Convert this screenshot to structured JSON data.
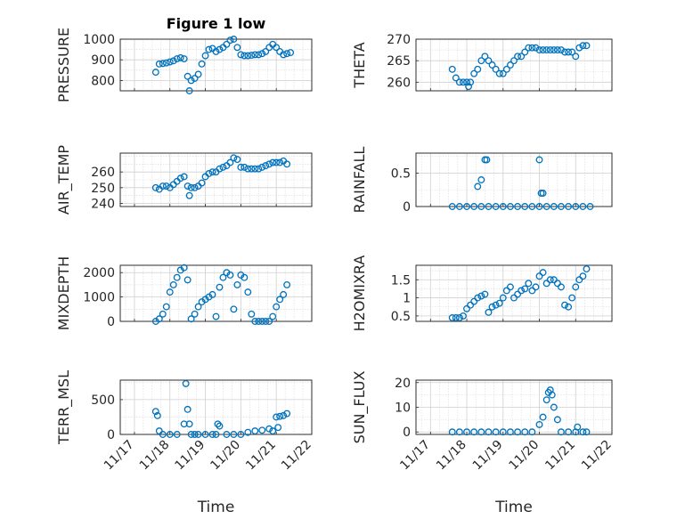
{
  "window": {
    "width": 778,
    "height": 583
  },
  "colors": {
    "marker": "#0072bd",
    "axis": "#262626",
    "grid": "#d8d8d8"
  },
  "chart_data": [
    {
      "id": "pressure",
      "type": "scatter",
      "title": "Figure 1 low",
      "ylabel": "PRESSURE",
      "xlabel": "",
      "ylim": [
        750,
        1000
      ],
      "yticks": [
        800,
        900,
        1000
      ],
      "xticks": [],
      "grid": true,
      "x_days": [
        0.6,
        0.7,
        0.8,
        0.9,
        1.0,
        1.1,
        1.2,
        1.3,
        1.4,
        1.5,
        1.55,
        1.6,
        1.7,
        1.8,
        1.9,
        2.0,
        2.1,
        2.2,
        2.3,
        2.4,
        2.5,
        2.6,
        2.7,
        2.8,
        2.9,
        3.0,
        3.1,
        3.2,
        3.3,
        3.4,
        3.5,
        3.6,
        3.7,
        3.8,
        3.9,
        4.0,
        4.1,
        4.2,
        4.3,
        4.4
      ],
      "values": [
        840,
        880,
        882,
        885,
        890,
        895,
        905,
        910,
        905,
        820,
        750,
        800,
        810,
        830,
        880,
        920,
        950,
        955,
        940,
        950,
        960,
        975,
        995,
        1000,
        960,
        925,
        920,
        920,
        922,
        925,
        925,
        930,
        940,
        960,
        975,
        960,
        940,
        925,
        930,
        935
      ]
    },
    {
      "id": "theta",
      "type": "scatter",
      "ylabel": "THETA",
      "xlabel": "",
      "ylim": [
        258,
        270
      ],
      "yticks": [
        260,
        265,
        270
      ],
      "xticks": [],
      "grid": true,
      "x_days": [
        0.6,
        0.7,
        0.8,
        0.9,
        1.0,
        1.05,
        1.1,
        1.2,
        1.3,
        1.4,
        1.5,
        1.6,
        1.7,
        1.8,
        1.9,
        2.0,
        2.1,
        2.2,
        2.3,
        2.4,
        2.5,
        2.6,
        2.7,
        2.8,
        2.9,
        3.0,
        3.1,
        3.2,
        3.3,
        3.4,
        3.5,
        3.6,
        3.7,
        3.8,
        3.9,
        4.0,
        4.1,
        4.2,
        4.3
      ],
      "values": [
        263,
        261,
        260,
        260,
        260,
        259,
        260,
        262,
        263,
        265,
        266,
        265,
        264,
        263,
        262,
        262,
        263,
        264,
        265,
        266,
        266,
        267,
        268,
        268,
        268,
        267.5,
        267.5,
        267.5,
        267.5,
        267.5,
        267.5,
        267.5,
        267,
        267,
        267,
        266,
        268,
        268.5,
        268.5
      ]
    },
    {
      "id": "air_temp",
      "type": "scatter",
      "ylabel": "AIR_TEMP",
      "xlabel": "",
      "ylim": [
        238,
        272
      ],
      "yticks": [
        240,
        250,
        260
      ],
      "xticks": [],
      "grid": true,
      "x_days": [
        0.6,
        0.7,
        0.8,
        0.9,
        1.0,
        1.1,
        1.2,
        1.3,
        1.4,
        1.5,
        1.55,
        1.6,
        1.7,
        1.8,
        1.9,
        2.0,
        2.1,
        2.2,
        2.3,
        2.4,
        2.5,
        2.6,
        2.7,
        2.8,
        2.9,
        3.0,
        3.1,
        3.2,
        3.3,
        3.4,
        3.5,
        3.6,
        3.7,
        3.8,
        3.9,
        4.0,
        4.1,
        4.2,
        4.3
      ],
      "values": [
        250,
        249,
        251,
        251,
        250,
        252,
        254,
        256,
        257,
        251,
        245,
        250,
        250,
        251,
        253,
        257,
        259,
        260,
        260,
        262,
        263,
        264,
        266,
        269,
        268,
        263,
        263,
        262,
        262,
        262,
        262,
        263,
        264,
        265,
        266,
        266,
        266,
        267,
        265
      ]
    },
    {
      "id": "rainfall",
      "type": "scatter",
      "ylabel": "RAINFALL",
      "xlabel": "",
      "ylim": [
        0,
        0.8
      ],
      "yticks": [
        0,
        0.5
      ],
      "xticks": [],
      "grid": true,
      "x_days": [
        0.6,
        0.8,
        1.0,
        1.2,
        1.4,
        1.6,
        1.8,
        2.0,
        2.2,
        2.4,
        2.6,
        2.8,
        3.0,
        3.2,
        3.4,
        3.6,
        3.8,
        4.0,
        4.2,
        4.4,
        1.3,
        1.4,
        1.5,
        1.55,
        3.0,
        3.05,
        3.1
      ],
      "values": [
        0,
        0,
        0,
        0,
        0,
        0,
        0,
        0,
        0,
        0,
        0,
        0,
        0,
        0,
        0,
        0,
        0,
        0,
        0,
        0,
        0.3,
        0.4,
        0.7,
        0.7,
        0.7,
        0.2,
        0.2
      ]
    },
    {
      "id": "mixdepth",
      "type": "scatter",
      "ylabel": "MIXDEPTH",
      "xlabel": "",
      "ylim": [
        0,
        2300
      ],
      "yticks": [
        0,
        1000,
        2000
      ],
      "xticks": [],
      "grid": true,
      "x_days": [
        0.6,
        0.7,
        0.8,
        0.9,
        1.0,
        1.1,
        1.2,
        1.3,
        1.4,
        1.5,
        1.6,
        1.7,
        1.8,
        1.9,
        2.0,
        2.1,
        2.2,
        2.3,
        2.4,
        2.5,
        2.6,
        2.7,
        2.8,
        2.9,
        3.0,
        3.1,
        3.2,
        3.3,
        3.4,
        3.5,
        3.6,
        3.7,
        3.8,
        3.9,
        4.0,
        4.1,
        4.2,
        4.3
      ],
      "values": [
        0,
        100,
        300,
        600,
        1200,
        1500,
        1800,
        2100,
        2200,
        1700,
        100,
        300,
        600,
        800,
        900,
        1000,
        1100,
        200,
        1400,
        1800,
        2000,
        1900,
        500,
        1500,
        1900,
        1800,
        1200,
        300,
        0,
        0,
        0,
        0,
        0,
        200,
        600,
        900,
        1100,
        1500
      ]
    },
    {
      "id": "h2omixra",
      "type": "scatter",
      "ylabel": "H2OMIXRA",
      "xlabel": "",
      "ylim": [
        0.35,
        1.9
      ],
      "yticks": [
        0.5,
        1,
        1.5
      ],
      "xticks": [],
      "grid": true,
      "x_days": [
        0.6,
        0.7,
        0.8,
        0.9,
        1.0,
        1.1,
        1.2,
        1.3,
        1.4,
        1.5,
        1.6,
        1.7,
        1.8,
        1.9,
        2.0,
        2.1,
        2.2,
        2.3,
        2.4,
        2.5,
        2.6,
        2.7,
        2.8,
        2.9,
        3.0,
        3.1,
        3.2,
        3.3,
        3.4,
        3.5,
        3.6,
        3.7,
        3.8,
        3.9,
        4.0,
        4.1,
        4.2,
        4.3
      ],
      "values": [
        0.45,
        0.45,
        0.45,
        0.5,
        0.7,
        0.8,
        0.9,
        1.0,
        1.05,
        1.1,
        0.6,
        0.75,
        0.8,
        0.85,
        1.0,
        1.2,
        1.3,
        1.0,
        1.1,
        1.2,
        1.25,
        1.4,
        1.2,
        1.3,
        1.6,
        1.7,
        1.4,
        1.5,
        1.5,
        1.4,
        1.3,
        0.8,
        0.75,
        1.0,
        1.3,
        1.5,
        1.6,
        1.8
      ]
    },
    {
      "id": "terr_msl",
      "type": "scatter",
      "ylabel": "TERR_MSL",
      "xlabel": "Time",
      "ylim": [
        0,
        780
      ],
      "yticks": [
        0,
        500
      ],
      "xticks": [
        "11/17",
        "11/18",
        "11/19",
        "11/20",
        "11/21",
        "11/22"
      ],
      "grid": true,
      "x_days": [
        0.6,
        0.65,
        0.7,
        0.8,
        1.0,
        1.2,
        1.4,
        1.45,
        1.5,
        1.55,
        1.6,
        1.7,
        1.8,
        2.0,
        2.2,
        2.3,
        2.35,
        2.4,
        2.6,
        2.8,
        3.0,
        3.2,
        3.4,
        3.6,
        3.8,
        3.9,
        4.0,
        4.05,
        4.1,
        4.2,
        4.3
      ],
      "values": [
        330,
        270,
        50,
        0,
        0,
        0,
        150,
        730,
        360,
        150,
        0,
        0,
        0,
        0,
        0,
        0,
        150,
        120,
        0,
        0,
        0,
        30,
        50,
        60,
        80,
        50,
        250,
        100,
        260,
        270,
        300
      ]
    },
    {
      "id": "sun_flux",
      "type": "scatter",
      "ylabel": "SUN_FLUX",
      "xlabel": "Time",
      "ylim": [
        -1,
        21
      ],
      "yticks": [
        0,
        10,
        20
      ],
      "xticks": [
        "11/17",
        "11/18",
        "11/19",
        "11/20",
        "11/21",
        "11/22"
      ],
      "grid": true,
      "x_days": [
        0.6,
        0.8,
        1.0,
        1.2,
        1.4,
        1.6,
        1.8,
        2.0,
        2.2,
        2.4,
        2.6,
        2.8,
        3.0,
        3.1,
        3.2,
        3.25,
        3.3,
        3.35,
        3.4,
        3.5,
        3.6,
        3.8,
        4.0,
        4.05,
        4.2,
        4.3
      ],
      "values": [
        0,
        0,
        0,
        0,
        0,
        0,
        0,
        0,
        0,
        0,
        0,
        0,
        3,
        6,
        13,
        16,
        17,
        15,
        10,
        5,
        0,
        0,
        0,
        2,
        0,
        0
      ]
    }
  ]
}
